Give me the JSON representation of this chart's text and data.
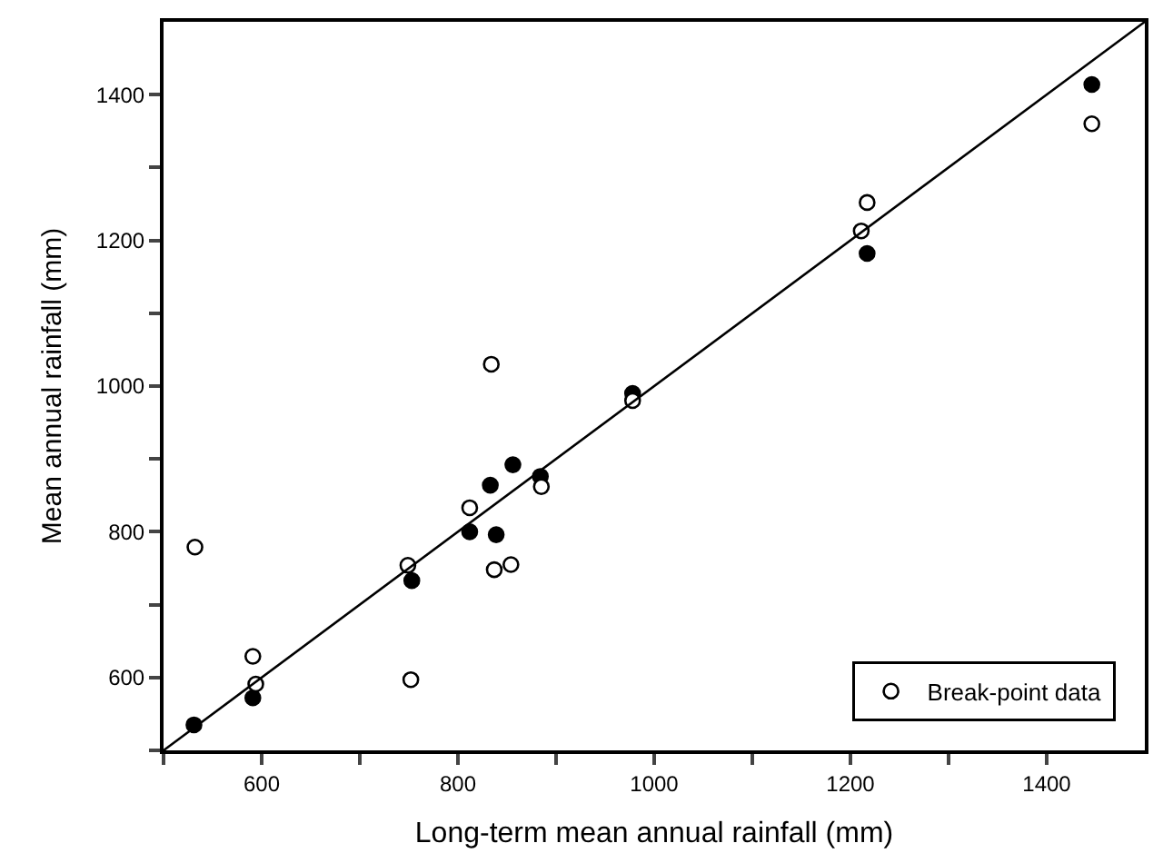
{
  "chart_data": {
    "type": "scatter",
    "xlabel": "Long-term mean annual rainfall (mm)",
    "ylabel": "Mean annual rainfall (mm)",
    "xlim": [
      500,
      1500
    ],
    "ylim": [
      500,
      1500
    ],
    "xticks": [
      {
        "value": 500,
        "label": null
      },
      600,
      {
        "value": 700,
        "label": null
      },
      800,
      {
        "value": 900,
        "label": null
      },
      1000,
      {
        "value": 1100,
        "label": null
      },
      1200,
      {
        "value": 1300,
        "label": null
      },
      1400
    ],
    "yticks": [
      {
        "value": 500,
        "label": null
      },
      600,
      {
        "value": 700,
        "label": null
      },
      800,
      {
        "value": 900,
        "label": null
      },
      1000,
      {
        "value": 1100,
        "label": null
      },
      1200,
      {
        "value": 1300,
        "label": null
      },
      1400
    ],
    "legend": "bottom right",
    "marker": "circle",
    "series": [
      {
        "color": "#000000",
        "x": [
          531,
          591,
          753,
          812,
          833,
          856,
          839,
          884,
          978,
          1217,
          1446
        ],
        "values": [
          535,
          572,
          733,
          800,
          864,
          892,
          796,
          876,
          990,
          1182,
          1414
        ]
      },
      {
        "name": "Break-point data",
        "color": "#ffffff",
        "x": [
          532,
          591,
          594,
          749,
          752,
          812,
          837,
          854,
          885,
          834,
          978,
          1217,
          1211,
          1446
        ],
        "values": [
          779,
          629,
          591,
          754,
          597,
          833,
          748,
          755,
          862,
          1030,
          980,
          1252,
          1213,
          1360
        ]
      },
      {
        "type": "line",
        "marker": "none",
        "color": "#000000",
        "x": [
          500,
          1500
        ],
        "values": [
          500,
          1500
        ]
      }
    ]
  }
}
